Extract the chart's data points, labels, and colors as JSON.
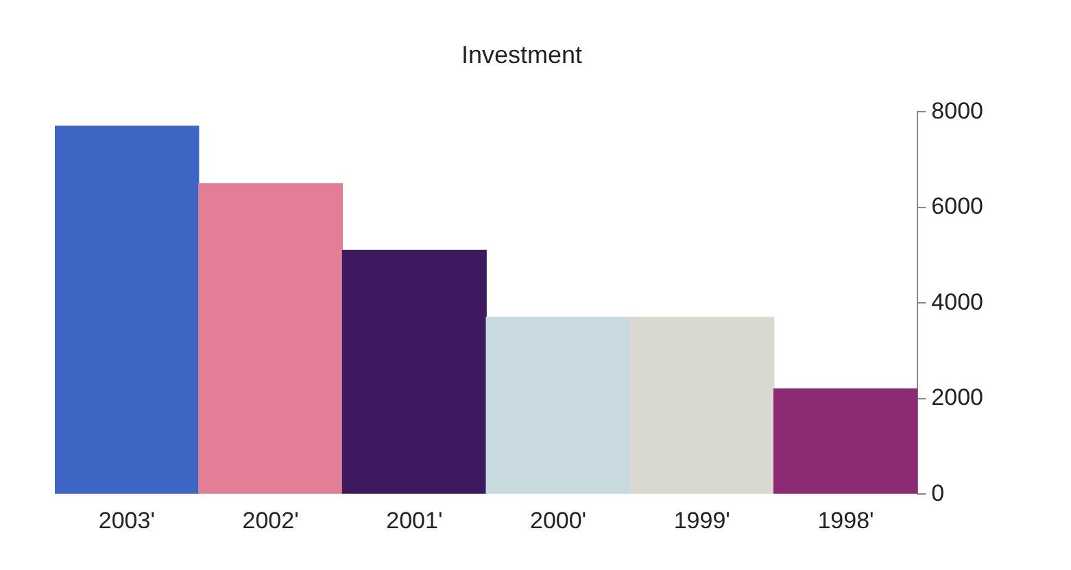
{
  "chart_data": {
    "type": "bar",
    "title": "Investment",
    "categories": [
      "2003'",
      "2002'",
      "2001'",
      "2000'",
      "1999'",
      "1998'"
    ],
    "values": [
      7700,
      6500,
      5100,
      3700,
      3700,
      2200
    ],
    "colors": [
      "#3f66c4",
      "#e27e95",
      "#3d1a60",
      "#c9d9e0",
      "#d9d9cf",
      "#8c2a74"
    ],
    "ylim": [
      0,
      8000
    ],
    "yticks": [
      0,
      2000,
      4000,
      6000,
      8000
    ],
    "grid": false,
    "legend": false
  }
}
